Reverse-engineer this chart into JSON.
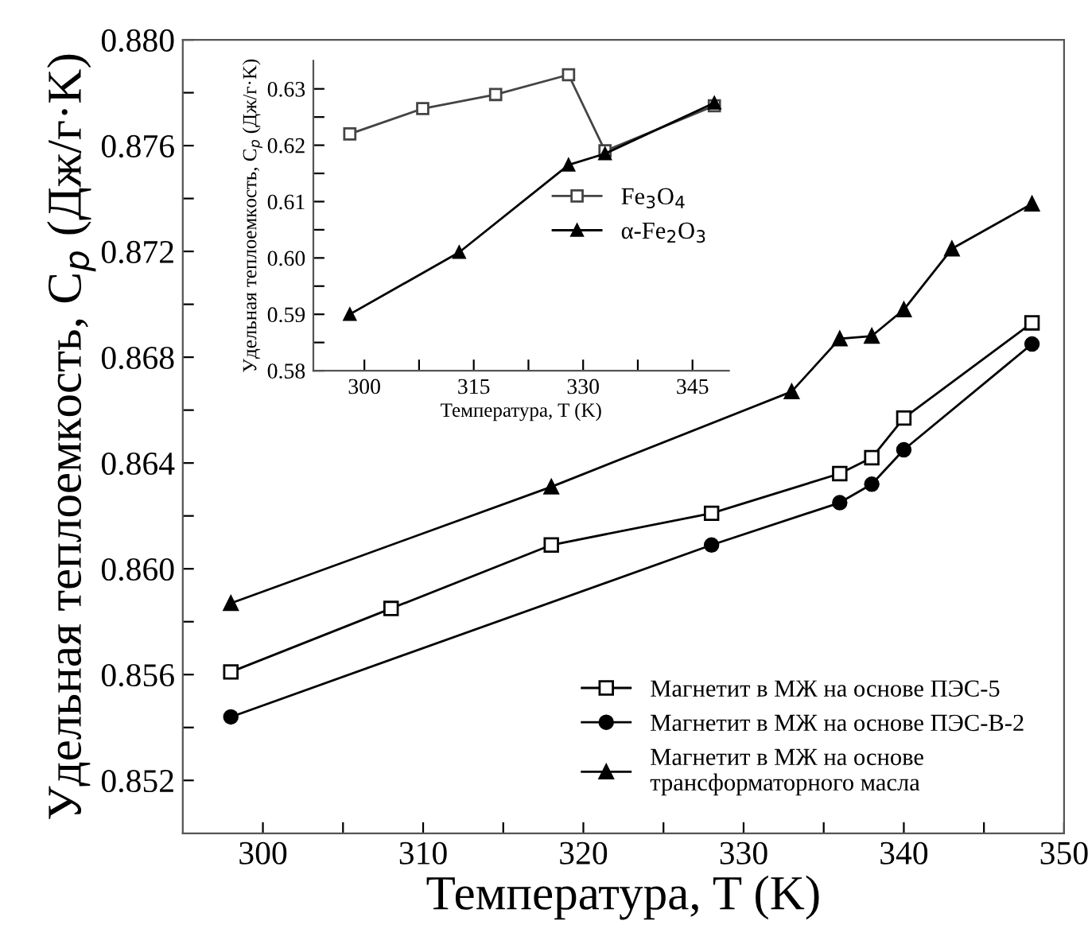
{
  "chart_data": [
    {
      "type": "line",
      "xlabel": "Температура, T (K)",
      "ylabel": "Удельная теплоемкость, C$_{p}$ (Дж/г·K)",
      "xlim": [
        295,
        350
      ],
      "xticks": [
        300,
        {
          "value": 305,
          "label": null
        },
        310,
        {
          "value": 315,
          "label": null
        },
        320,
        {
          "value": 325,
          "label": null
        },
        330,
        {
          "value": 335,
          "label": null
        },
        340,
        {
          "value": 345,
          "label": null
        },
        350
      ],
      "ylim": [
        0.85,
        0.88
      ],
      "yticks": [
        {
          "value": 0.852,
          "label": "0.852"
        },
        {
          "value": 0.854,
          "label": null
        },
        {
          "value": 0.856,
          "label": "0.856"
        },
        {
          "value": 0.858,
          "label": null
        },
        {
          "value": 0.86,
          "label": "0.860"
        },
        {
          "value": 0.862,
          "label": null
        },
        {
          "value": 0.864,
          "label": "0.864"
        },
        {
          "value": 0.866,
          "label": null
        },
        {
          "value": 0.868,
          "label": "0.868"
        },
        {
          "value": 0.87,
          "label": null
        },
        {
          "value": 0.872,
          "label": "0.872"
        },
        {
          "value": 0.874,
          "label": null
        },
        {
          "value": 0.876,
          "label": "0.876"
        },
        {
          "value": 0.878,
          "label": null
        },
        {
          "value": 0.88,
          "label": "0.880"
        }
      ],
      "grid": false,
      "legend": "bottom right",
      "series": [
        {
          "name": "Магнетит в МЖ на основе ПЭС-5",
          "color": "#000000",
          "marker": "square",
          "x": [
            298,
            308,
            318,
            328,
            336,
            338,
            340,
            348
          ],
          "values": [
            0.8561,
            0.8585,
            0.8609,
            0.8621,
            0.8636,
            0.8642,
            0.8657,
            0.8693
          ]
        },
        {
          "name": "Магнетит в МЖ на основе ПЭС-В-2",
          "color": "#000000",
          "marker": "circle",
          "x": [
            298,
            328,
            336,
            338,
            340,
            348
          ],
          "values": [
            0.8544,
            0.8609,
            0.8625,
            0.8632,
            0.8645,
            0.8685
          ]
        },
        {
          "name": "Магнетит в МЖ на основе\nтрансформаторного масла",
          "color": "#000000",
          "marker": "triangle",
          "x": [
            298,
            318,
            333,
            336,
            338,
            340,
            343,
            348
          ],
          "values": [
            0.8587,
            0.8631,
            0.8667,
            0.8687,
            0.8688,
            0.8698,
            0.8721,
            0.8738
          ]
        }
      ]
    },
    {
      "type": "line",
      "xlabel": "Температура, T (K)",
      "ylabel": "Удельная теплоемкость, C$_{p}$ (Дж/г·K)",
      "xlim": [
        293,
        350
      ],
      "xticks": [
        300,
        {
          "value": 307.5,
          "label": null
        },
        315,
        {
          "value": 322.5,
          "label": null
        },
        330,
        {
          "value": 337.5,
          "label": null
        },
        345
      ],
      "ylim": [
        0.58,
        0.635
      ],
      "yticks": [
        {
          "value": 0.58,
          "label": "0.58"
        },
        {
          "value": 0.585,
          "label": null
        },
        {
          "value": 0.59,
          "label": "0.59"
        },
        {
          "value": 0.595,
          "label": null
        },
        {
          "value": 0.6,
          "label": "0.60"
        },
        {
          "value": 0.605,
          "label": null
        },
        {
          "value": 0.61,
          "label": "0.61"
        },
        {
          "value": 0.615,
          "label": null
        },
        {
          "value": 0.62,
          "label": "0.62"
        },
        {
          "value": 0.625,
          "label": null
        },
        {
          "value": 0.63,
          "label": "0.63"
        }
      ],
      "grid": false,
      "legend": "right",
      "series": [
        {
          "name": "Fe$_{3}$O$_{4}$",
          "color": "#444444",
          "marker": "square",
          "x": [
            298,
            308,
            318,
            328,
            333,
            348
          ],
          "values": [
            0.622,
            0.6265,
            0.629,
            0.6325,
            0.619,
            0.627
          ]
        },
        {
          "name": "α-Fe$_{2}$O$_{3}$",
          "color": "#000000",
          "marker": "triangle",
          "x": [
            298,
            313,
            328,
            333,
            348
          ],
          "values": [
            0.59,
            0.601,
            0.6165,
            0.6185,
            0.6275
          ]
        }
      ]
    }
  ]
}
